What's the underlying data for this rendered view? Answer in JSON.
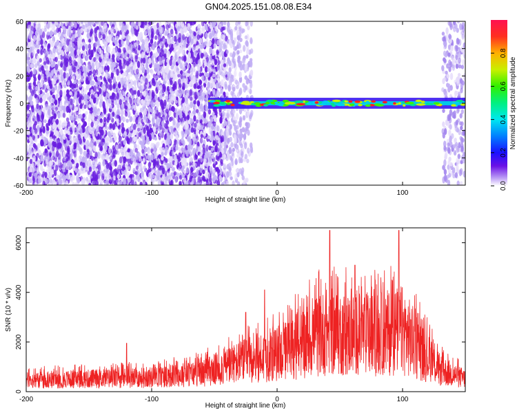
{
  "title": "GN04.2025.151.08.08.E34",
  "chart_data": [
    {
      "type": "heatmap",
      "xlabel": "Height of straight line (km)",
      "ylabel": "Frequency (Hz)",
      "xlim": [
        -200,
        150
      ],
      "ylim": [
        -60,
        60
      ],
      "xticks": [
        -200,
        -100,
        0,
        100
      ],
      "yticks": [
        -60,
        -40,
        -20,
        0,
        20,
        40,
        60
      ],
      "colorbar": {
        "label": "Normalized spectral amplitude",
        "range": [
          0,
          1
        ],
        "ticks": [
          0.0,
          0.2,
          0.4,
          0.6,
          0.8
        ]
      },
      "features": [
        {
          "kind": "noise",
          "x_range": [
            -200,
            -40
          ],
          "y_range": [
            -60,
            60
          ],
          "color": "#6a1fe0"
        },
        {
          "kind": "noise",
          "x_range": [
            -40,
            -20
          ],
          "y_range": [
            -60,
            60
          ],
          "color": "#b9a3f2"
        },
        {
          "kind": "noise",
          "x_range": [
            132,
            150
          ],
          "y_range": [
            -60,
            60
          ],
          "color": "#a487ee"
        },
        {
          "kind": "signal",
          "x_range": [
            -55,
            150
          ],
          "center_hz": 0,
          "half_width_hz": 3
        }
      ],
      "grid": false
    },
    {
      "type": "line",
      "xlabel": "Height of straight line (km)",
      "ylabel": "SNR (10 * v/v)",
      "xlim": [
        -200,
        150
      ],
      "ylim": [
        0,
        6600
      ],
      "xticks": [
        -200,
        -100,
        0,
        100
      ],
      "yticks": [
        0,
        2000,
        4000,
        6000
      ],
      "series": [
        {
          "color": "#ee2222",
          "envelope": [
            {
              "x": -200,
              "y": 800
            },
            {
              "x": -150,
              "y": 900
            },
            {
              "x": -100,
              "y": 1000
            },
            {
              "x": -60,
              "y": 1300
            },
            {
              "x": -40,
              "y": 1800
            },
            {
              "x": -20,
              "y": 2300
            },
            {
              "x": 0,
              "y": 2600
            },
            {
              "x": 20,
              "y": 3400
            },
            {
              "x": 40,
              "y": 4200
            },
            {
              "x": 60,
              "y": 4000
            },
            {
              "x": 80,
              "y": 4000
            },
            {
              "x": 100,
              "y": 4300
            },
            {
              "x": 115,
              "y": 2800
            },
            {
              "x": 130,
              "y": 1500
            },
            {
              "x": 150,
              "y": 900
            }
          ],
          "peaks": [
            {
              "x": -120,
              "y": 1950
            },
            {
              "x": -25,
              "y": 3200
            },
            {
              "x": -10,
              "y": 4100
            },
            {
              "x": 42,
              "y": 6500
            },
            {
              "x": 62,
              "y": 5100
            },
            {
              "x": 97,
              "y": 6500
            },
            {
              "x": 123,
              "y": 2000
            }
          ]
        }
      ],
      "grid": false
    }
  ]
}
